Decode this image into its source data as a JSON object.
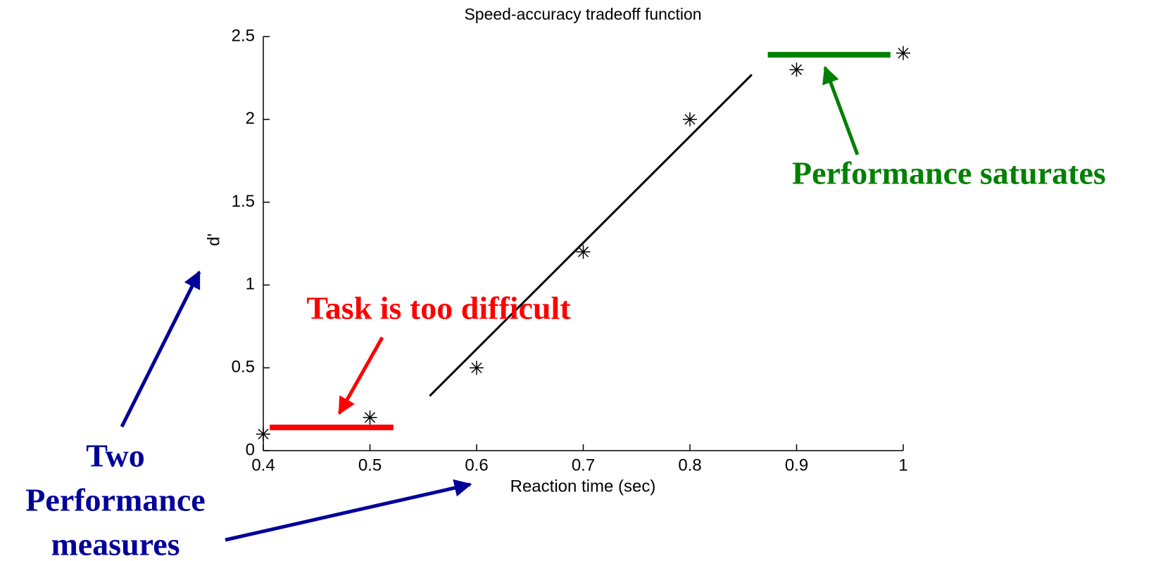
{
  "chart_data": {
    "type": "scatter",
    "title": "Speed-accuracy tradeoff function",
    "xlabel": "Reaction time (sec)",
    "ylabel": "d'",
    "x": [
      0.4,
      0.5,
      0.6,
      0.7,
      0.8,
      0.9,
      1.0
    ],
    "values": [
      0.1,
      0.2,
      0.5,
      1.2,
      2.0,
      2.3,
      2.4
    ],
    "color": "#000000",
    "xlim": [
      0.4,
      1.0
    ],
    "ylim": [
      0,
      2.5
    ],
    "xticks": [
      0.4,
      0.5,
      0.6,
      0.7,
      0.8,
      0.9,
      1
    ],
    "yticks": [
      0,
      0.5,
      1,
      1.5,
      2,
      2.5
    ],
    "grid": false,
    "fit_line": {
      "x": [
        0.556,
        0.858
      ],
      "values": [
        0.33,
        2.27
      ],
      "color": "#000000"
    },
    "level_lines": [
      {
        "x": [
          0.406,
          0.522
        ],
        "values": [
          0.14,
          0.14
        ],
        "color": "#ff0000"
      },
      {
        "x": [
          0.873,
          0.988
        ],
        "values": [
          2.39,
          2.39
        ],
        "color": "#008000"
      }
    ],
    "annotations": [
      {
        "text": "Task is too difficult",
        "color": "#ff0000"
      },
      {
        "text": "Performance saturates",
        "color": "#008000"
      },
      {
        "lines": [
          "Two",
          "Performance",
          "measures"
        ],
        "color": "#000099"
      }
    ]
  }
}
